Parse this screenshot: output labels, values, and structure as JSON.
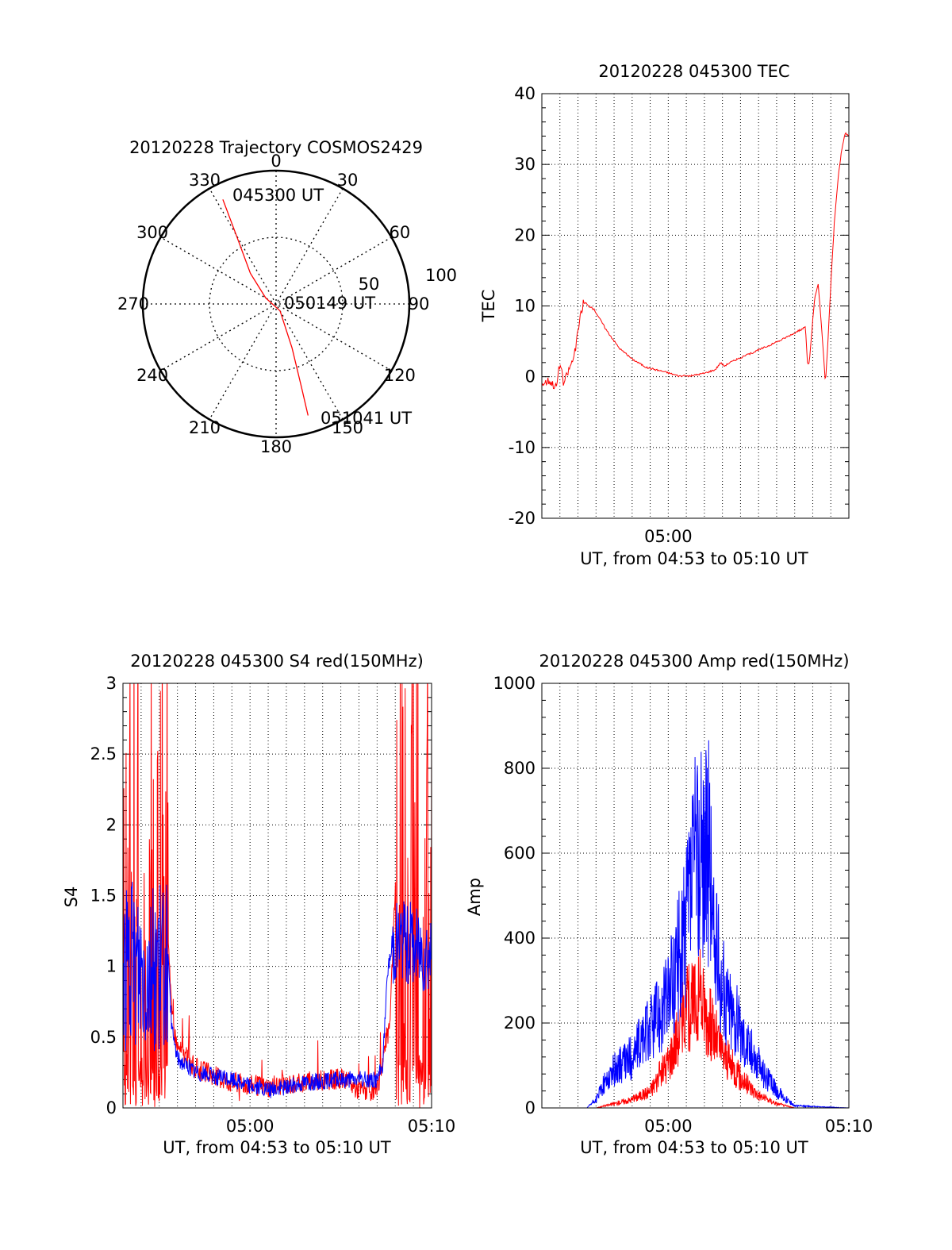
{
  "colors": {
    "red": "#ff0000",
    "blue": "#0000ff",
    "axis": "#000000"
  },
  "chart_data": [
    {
      "type": "polar",
      "title": "20120228 Trajectory COSMOS2429",
      "angle_labels": [
        "0",
        "30",
        "60",
        "90",
        "120",
        "150",
        "180",
        "210",
        "240",
        "270",
        "300",
        "330"
      ],
      "radial_labels": [
        "50",
        "100"
      ],
      "rlim": [
        0,
        100
      ],
      "grid": true,
      "annotations": [
        "045300 UT",
        "050149 UT",
        "051041 UT"
      ],
      "trajectory": {
        "color": "red",
        "points": [
          {
            "az": 333,
            "r": 88
          },
          {
            "az": 330,
            "r": 60
          },
          {
            "az": 320,
            "r": 30
          },
          {
            "az": 300,
            "r": 9
          },
          {
            "az": 150,
            "r": 6
          },
          {
            "az": 160,
            "r": 35
          },
          {
            "az": 163,
            "r": 65
          },
          {
            "az": 164,
            "r": 87
          }
        ]
      }
    },
    {
      "type": "line",
      "title": "20120228 045300 TEC",
      "xlabel": "UT, from 04:53 to 05:10 UT",
      "ylabel": "TEC",
      "xlim": [
        0,
        17
      ],
      "ylim": [
        -20,
        40
      ],
      "yticks": [
        "-20",
        "-10",
        "0",
        "10",
        "20",
        "30",
        "40"
      ],
      "xtick_labels": [
        "05:00"
      ],
      "grid": true,
      "series": [
        {
          "color": "red",
          "points": [
            [
              0,
              -1
            ],
            [
              0.4,
              -0.5
            ],
            [
              0.8,
              -1.5
            ],
            [
              1.0,
              2
            ],
            [
              1.2,
              -1
            ],
            [
              1.5,
              1
            ],
            [
              1.8,
              3
            ],
            [
              2.1,
              8
            ],
            [
              2.3,
              10.5
            ],
            [
              2.6,
              10
            ],
            [
              2.9,
              9.5
            ],
            [
              3.6,
              6.5
            ],
            [
              4.3,
              4
            ],
            [
              5.0,
              2.5
            ],
            [
              5.8,
              1.3
            ],
            [
              6.8,
              0.7
            ],
            [
              7.6,
              0.1
            ],
            [
              8.2,
              0.1
            ],
            [
              9.0,
              0.5
            ],
            [
              9.6,
              1
            ],
            [
              9.9,
              2
            ],
            [
              10.1,
              1.5
            ],
            [
              10.4,
              2
            ],
            [
              11.3,
              3
            ],
            [
              12.2,
              4
            ],
            [
              13.1,
              5
            ],
            [
              14.0,
              6.2
            ],
            [
              14.6,
              7
            ],
            [
              14.7,
              2
            ],
            [
              14.8,
              1.8
            ],
            [
              15.1,
              11
            ],
            [
              15.3,
              13
            ],
            [
              15.4,
              10
            ],
            [
              15.6,
              3
            ],
            [
              15.7,
              -1
            ],
            [
              15.8,
              3
            ],
            [
              16.0,
              13
            ],
            [
              16.2,
              22
            ],
            [
              16.4,
              28
            ],
            [
              16.6,
              32
            ],
            [
              16.8,
              34.5
            ],
            [
              17,
              34
            ]
          ]
        }
      ]
    },
    {
      "type": "line",
      "title": "20120228 045300 S4 red(150MHz)",
      "xlabel": "UT, from 04:53 to 05:10 UT",
      "ylabel": "S4",
      "xlim": [
        0,
        17
      ],
      "ylim": [
        0,
        3
      ],
      "yticks": [
        "0",
        "0.5",
        "1",
        "1.5",
        "2",
        "2.5",
        "3"
      ],
      "xtick_labels": [
        "05:00",
        "05:10"
      ],
      "grid": true,
      "series": [
        {
          "color": "red",
          "points": [
            [
              0,
              1.5
            ],
            [
              2.5,
              1.2
            ],
            [
              2.7,
              0.6
            ],
            [
              3.0,
              0.4
            ],
            [
              4.0,
              0.25
            ],
            [
              6.0,
              0.15
            ],
            [
              8.0,
              0.12
            ],
            [
              10.0,
              0.15
            ],
            [
              12.0,
              0.18
            ],
            [
              13.0,
              0.1
            ],
            [
              14.0,
              0.08
            ],
            [
              14.7,
              0.6
            ],
            [
              15.0,
              1.5
            ],
            [
              17,
              1.5
            ]
          ]
        },
        {
          "color": "blue",
          "points": [
            [
              0,
              1.0
            ],
            [
              2.5,
              1.0
            ],
            [
              2.7,
              0.55
            ],
            [
              3.0,
              0.35
            ],
            [
              4.0,
              0.25
            ],
            [
              6.0,
              0.2
            ],
            [
              8.0,
              0.12
            ],
            [
              10.0,
              0.18
            ],
            [
              12.0,
              0.2
            ],
            [
              14.0,
              0.2
            ],
            [
              14.3,
              0.3
            ],
            [
              14.6,
              1.0
            ],
            [
              15.0,
              1.2
            ],
            [
              17,
              1.1
            ]
          ]
        }
      ]
    },
    {
      "type": "line",
      "title": "20120228 045300 Amp red(150MHz)",
      "xlabel": "UT, from 04:53 to 05:10 UT",
      "ylabel": "Amp",
      "xlim": [
        0,
        17
      ],
      "ylim": [
        0,
        1000
      ],
      "yticks": [
        "0",
        "200",
        "400",
        "600",
        "800",
        "1000"
      ],
      "xtick_labels": [
        "05:00",
        "05:10"
      ],
      "grid": true,
      "series": [
        {
          "color": "red",
          "points": [
            [
              0,
              0
            ],
            [
              3.0,
              0
            ],
            [
              4.0,
              10
            ],
            [
              5.0,
              20
            ],
            [
              6.0,
              40
            ],
            [
              7.0,
              110
            ],
            [
              7.5,
              170
            ],
            [
              8.0,
              230
            ],
            [
              8.8,
              260
            ],
            [
              9.3,
              200
            ],
            [
              10.0,
              130
            ],
            [
              11.0,
              70
            ],
            [
              12.0,
              30
            ],
            [
              13.0,
              10
            ],
            [
              14.0,
              0
            ],
            [
              17,
              0
            ]
          ]
        },
        {
          "color": "blue",
          "points": [
            [
              0,
              0
            ],
            [
              2.5,
              0
            ],
            [
              3.0,
              20
            ],
            [
              3.5,
              60
            ],
            [
              4.0,
              90
            ],
            [
              5.0,
              120
            ],
            [
              6.0,
              190
            ],
            [
              7.0,
              260
            ],
            [
              7.5,
              340
            ],
            [
              8.0,
              430
            ],
            [
              8.5,
              580
            ],
            [
              9.3,
              600
            ],
            [
              9.5,
              400
            ],
            [
              10.0,
              280
            ],
            [
              11.0,
              180
            ],
            [
              12.0,
              100
            ],
            [
              13.0,
              40
            ],
            [
              14.0,
              5
            ],
            [
              17,
              0
            ]
          ]
        }
      ]
    }
  ]
}
